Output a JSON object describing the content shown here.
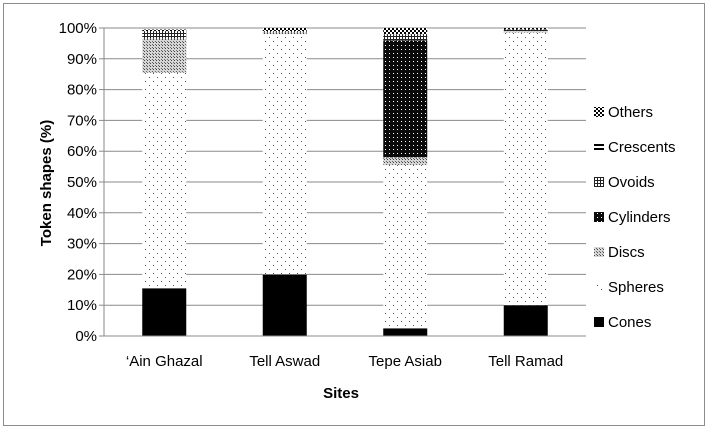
{
  "chart_data": {
    "type": "bar",
    "stacked": true,
    "xlabel": "Sites",
    "ylabel": "Token shapes (%)",
    "ylim": [
      0,
      100
    ],
    "y_ticks": [
      "0%",
      "10%",
      "20%",
      "30%",
      "40%",
      "50%",
      "60%",
      "70%",
      "80%",
      "90%",
      "100%"
    ],
    "grid": "horizontal",
    "legend_position": "right",
    "categories": [
      "‘Ain Ghazal",
      "Tell Aswad",
      "Tepe Asiab",
      "Tell Ramad"
    ],
    "series": [
      {
        "name": "Cones",
        "pattern": "solid",
        "values": [
          15.5,
          20,
          2.5,
          10
        ]
      },
      {
        "name": "Spheres",
        "pattern": "sparse-dots",
        "values": [
          70,
          78,
          53,
          88.5
        ]
      },
      {
        "name": "Discs",
        "pattern": "medium-dots",
        "values": [
          11,
          0.5,
          2.5,
          0.5
        ]
      },
      {
        "name": "Cylinders",
        "pattern": "dense-dots",
        "values": [
          0,
          0,
          38,
          0
        ]
      },
      {
        "name": "Ovoids",
        "pattern": "grid",
        "values": [
          2.5,
          0.5,
          2,
          0.5
        ]
      },
      {
        "name": "Crescents",
        "pattern": "hlines",
        "values": [
          0,
          0,
          0,
          0
        ]
      },
      {
        "name": "Others",
        "pattern": "checker",
        "values": [
          0.5,
          1,
          2,
          0.5
        ]
      }
    ]
  }
}
